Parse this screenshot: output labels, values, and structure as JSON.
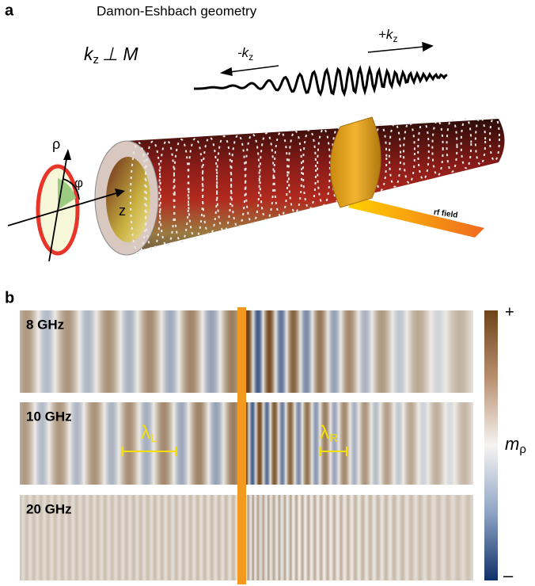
{
  "panel_a": {
    "label": "a",
    "title": "Damon-Eshbach geometry",
    "relation": {
      "k": "k",
      "sub": "z",
      "rest": "⊥ M"
    },
    "wave_left": {
      "k": "-k",
      "sub": "z"
    },
    "wave_right": {
      "k": "+k",
      "sub": "z"
    },
    "axes": {
      "rho": "ρ",
      "phi": "φ",
      "z": "z"
    },
    "rf_label": "rf field"
  },
  "panel_b": {
    "label": "b",
    "rows": [
      "8 GHz",
      "10 GHz",
      "20 GHz"
    ],
    "lambda_left": {
      "symbol": "λ",
      "sub": "L"
    },
    "lambda_right": {
      "symbol": "λ",
      "sub": "R"
    },
    "colorbar": {
      "top": "+",
      "quantity": "m",
      "sub": "ρ",
      "bottom": "–"
    }
  }
}
